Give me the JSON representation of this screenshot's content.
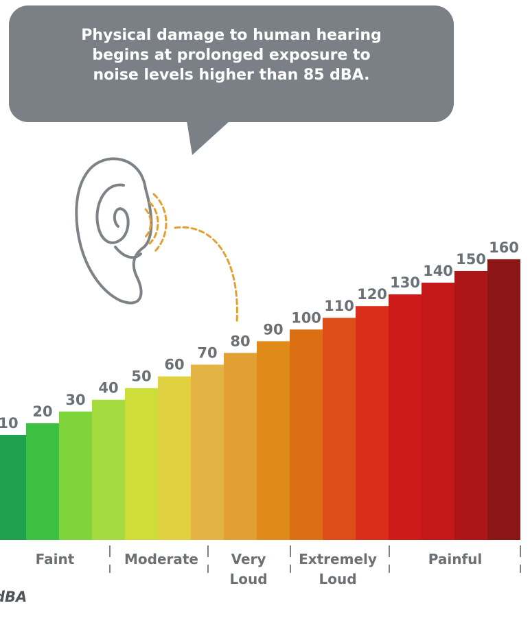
{
  "chart_data": {
    "type": "bar",
    "bubble_lines": [
      "Physical damage to human hearing",
      "begins at prolonged exposure to",
      "noise levels higher than 85 dBA."
    ],
    "values": [
      10,
      20,
      30,
      40,
      50,
      60,
      70,
      80,
      90,
      100,
      110,
      120,
      130,
      140,
      150,
      160
    ],
    "colors": [
      "#1fa24f",
      "#3cc043",
      "#7ed43a",
      "#a4dc3f",
      "#cfdd3a",
      "#e0d142",
      "#e3b444",
      "#e2a034",
      "#e08a1a",
      "#db6f14",
      "#dc4d18",
      "#da2e1a",
      "#cf1a1a",
      "#c41818",
      "#ac1618",
      "#8c1616"
    ],
    "groups": [
      [
        "Faint"
      ],
      [
        "Moderate"
      ],
      [
        "Very",
        "Loud"
      ],
      [
        "Extremely",
        "Loud"
      ],
      [
        "Painful"
      ]
    ],
    "unit": "dBA"
  }
}
